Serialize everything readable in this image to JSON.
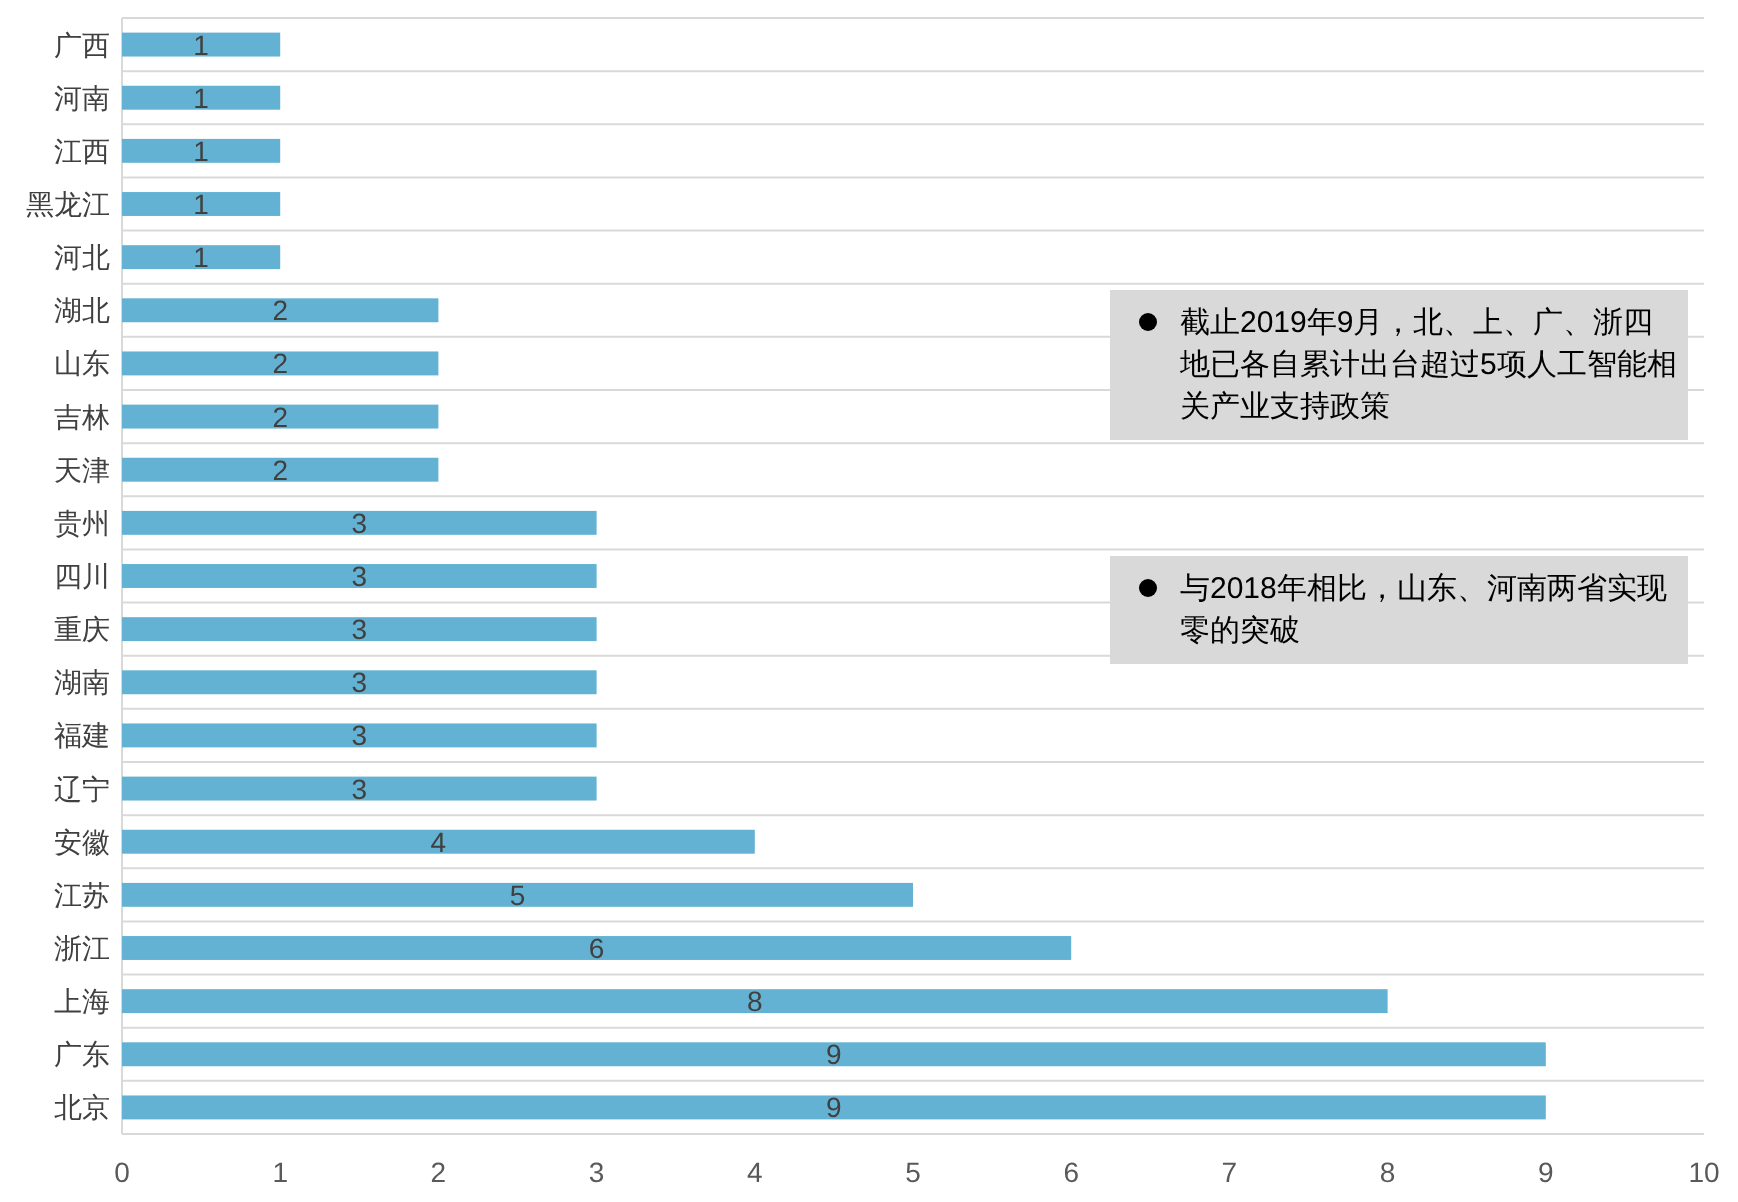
{
  "chart_data": {
    "type": "bar",
    "orientation": "horizontal",
    "categories": [
      "广西",
      "河南",
      "江西",
      "黑龙江",
      "河北",
      "湖北",
      "山东",
      "吉林",
      "天津",
      "贵州",
      "四川",
      "重庆",
      "湖南",
      "福建",
      "辽宁",
      "安徽",
      "江苏",
      "浙江",
      "上海",
      "广东",
      "北京"
    ],
    "values": [
      1,
      1,
      1,
      1,
      1,
      2,
      2,
      2,
      2,
      3,
      3,
      3,
      3,
      3,
      3,
      4,
      5,
      6,
      8,
      9,
      9
    ],
    "color": "#63b2d3",
    "xlim": [
      0,
      10
    ],
    "xticks": [
      0,
      1,
      2,
      3,
      4,
      5,
      6,
      7,
      8,
      9,
      10
    ],
    "grid": "y",
    "data_labels": true,
    "annotations": [
      "截止2019年9月，北、上、广、浙四地已各自累计出台超过5项人工智能相关产业支持政策",
      "与2018年相比，山东、河南两省实现零的突破"
    ]
  }
}
